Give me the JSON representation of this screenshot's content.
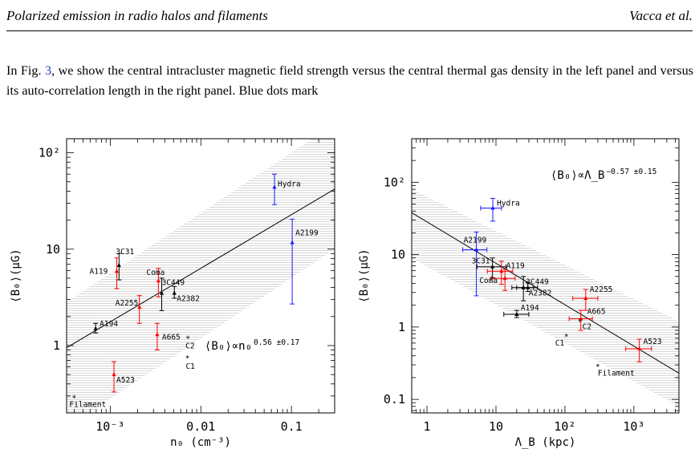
{
  "header": {
    "title": "Polarized emission in radio halos and filaments",
    "authors": "Vacca et al."
  },
  "paragraph": {
    "before_ref": "In Fig. ",
    "ref": "3",
    "after_ref": ", we show the central intracluster magnetic field strength versus the central thermal gas density in the left panel and versus its auto-correlation length in the right panel. Blue dots mark"
  },
  "chart_data": [
    {
      "type": "scatter",
      "xlabel": "n₀ (cm⁻³)",
      "ylabel": "⟨B₀⟩(μG)",
      "xscale": "log",
      "yscale": "log",
      "xlim": [
        0.00033,
        0.3
      ],
      "ylim": [
        0.2,
        140
      ],
      "xtick_labels": [
        "10⁻³",
        "0.01",
        "0.1"
      ],
      "ytick_labels": [
        "1",
        "10",
        "10²"
      ],
      "annotation": "⟨B₀⟩∝n₀",
      "annotation_exp": "0.56 ±0.17",
      "fit_line": [
        [
          0.00033,
          0.95
        ],
        [
          0.3,
          42
        ]
      ],
      "band": [
        [
          0.00033,
          2.8
        ],
        [
          0.3,
          200
        ],
        [
          0.3,
          10
        ],
        [
          0.00033,
          0.14
        ]
      ],
      "points": [
        {
          "label": "Hydra",
          "x": 0.065,
          "y": 44,
          "ylo": 29,
          "yhi": 60,
          "color": "#1a1aff"
        },
        {
          "label": "A2199",
          "x": 0.102,
          "y": 11.7,
          "ylo": 2.7,
          "yhi": 20.5,
          "color": "#1a1aff"
        },
        {
          "label": "3C31",
          "x": 0.00125,
          "y": 6.8,
          "ylo": 4.8,
          "yhi": 9.0,
          "color": "#000000"
        },
        {
          "label": "A119",
          "x": 0.00118,
          "y": 5.9,
          "ylo": 3.9,
          "yhi": 8.1,
          "color": "#ff0000"
        },
        {
          "label": "Coma",
          "x": 0.0034,
          "y": 4.7,
          "ylo": 3.2,
          "yhi": 6.3,
          "color": "#ff0000"
        },
        {
          "label": "3C449",
          "x": 0.0037,
          "y": 3.5,
          "ylo": 2.3,
          "yhi": 5.0,
          "color": "#000000"
        },
        {
          "label": "A2382",
          "x": 0.0051,
          "y": 3.5,
          "ylo": 3.1,
          "yhi": 4.1,
          "color": "#000000"
        },
        {
          "label": "A2255",
          "x": 0.0021,
          "y": 2.5,
          "ylo": 1.7,
          "yhi": 3.3,
          "color": "#ff0000"
        },
        {
          "label": "A194",
          "x": 0.00069,
          "y": 1.5,
          "ylo": 1.35,
          "yhi": 1.7,
          "color": "#000000"
        },
        {
          "label": "A665",
          "x": 0.0033,
          "y": 1.3,
          "ylo": 0.9,
          "yhi": 1.7,
          "color": "#ff0000"
        },
        {
          "label": "C2",
          "x": 0.0072,
          "y": 1.2,
          "color": "#000000",
          "star": true
        },
        {
          "label": "C1",
          "x": 0.0071,
          "y": 0.75,
          "color": "#000000",
          "star": true
        },
        {
          "label": "A523",
          "x": 0.0011,
          "y": 0.5,
          "ylo": 0.33,
          "yhi": 0.68,
          "color": "#ff0000"
        },
        {
          "label": "Filament",
          "x": 0.0004,
          "y": 0.29,
          "color": "#000000",
          "star": true
        }
      ]
    },
    {
      "type": "scatter",
      "xlabel": "Λ_B (kpc)",
      "ylabel": "⟨B₀⟩(μG)",
      "xscale": "log",
      "yscale": "log",
      "xlim": [
        0.6,
        4500
      ],
      "ylim": [
        0.065,
        400
      ],
      "xtick_labels": [
        "1",
        "10",
        "10²",
        "10³"
      ],
      "ytick_labels": [
        "0.1",
        "1",
        "10",
        "10²"
      ],
      "annotation": "⟨B₀⟩∝Λ_B",
      "annotation_exp": "−0.57 ±0.15",
      "fit_line": [
        [
          0.6,
          38
        ],
        [
          4500,
          0.23
        ]
      ],
      "band": [
        [
          0.6,
          80
        ],
        [
          4500,
          1.2
        ],
        [
          4500,
          0.08
        ],
        [
          0.6,
          9
        ]
      ],
      "points": [
        {
          "label": "Hydra",
          "x": 9,
          "y": 44,
          "ylo": 29,
          "yhi": 60,
          "xlo": 6,
          "xhi": 12,
          "color": "#1a1aff"
        },
        {
          "label": "A2199",
          "x": 5.2,
          "y": 11.7,
          "ylo": 2.7,
          "yhi": 20.5,
          "xlo": 3.3,
          "xhi": 7.4,
          "color": "#1a1aff"
        },
        {
          "label": "3C31",
          "x": 8.9,
          "y": 6.8,
          "ylo": 4.8,
          "yhi": 9.0,
          "xlo": 5.3,
          "xhi": 14,
          "color": "#000000"
        },
        {
          "label": "A119",
          "x": 12,
          "y": 5.9,
          "ylo": 3.9,
          "yhi": 8.1,
          "xlo": 7.5,
          "xhi": 17.5,
          "color": "#ff0000"
        },
        {
          "label": "Coma",
          "x": 13.5,
          "y": 4.7,
          "ylo": 3.2,
          "yhi": 6.3,
          "xlo": 8.5,
          "xhi": 19,
          "color": "#ff0000"
        },
        {
          "label": "3C449",
          "x": 25,
          "y": 3.5,
          "ylo": 2.3,
          "yhi": 5.0,
          "xlo": 17,
          "xhi": 35,
          "color": "#000000"
        },
        {
          "label": "A2382",
          "x": 29,
          "y": 3.5,
          "ylo": 3.1,
          "yhi": 4.1,
          "xlo": 20,
          "xhi": 40,
          "color": "#000000"
        },
        {
          "label": "A2255",
          "x": 200,
          "y": 2.5,
          "ylo": 1.7,
          "yhi": 3.3,
          "xlo": 130,
          "xhi": 300,
          "color": "#ff0000"
        },
        {
          "label": "A194",
          "x": 20,
          "y": 1.5,
          "ylo": 1.35,
          "yhi": 1.7,
          "xlo": 13,
          "xhi": 30,
          "color": "#000000"
        },
        {
          "label": "A665",
          "x": 170,
          "y": 1.3,
          "ylo": 0.9,
          "yhi": 1.7,
          "xlo": 115,
          "xhi": 250,
          "color": "#ff0000"
        },
        {
          "label": "C2",
          "x": 165,
          "y": 1.2,
          "color": "#000000",
          "star": true
        },
        {
          "label": "C1",
          "x": 105,
          "y": 0.75,
          "color": "#000000",
          "star": true
        },
        {
          "label": "A523",
          "x": 1200,
          "y": 0.5,
          "ylo": 0.33,
          "yhi": 0.68,
          "xlo": 760,
          "xhi": 1800,
          "color": "#ff0000"
        },
        {
          "label": "Filament",
          "x": 300,
          "y": 0.29,
          "color": "#000000",
          "star": true
        }
      ]
    }
  ]
}
